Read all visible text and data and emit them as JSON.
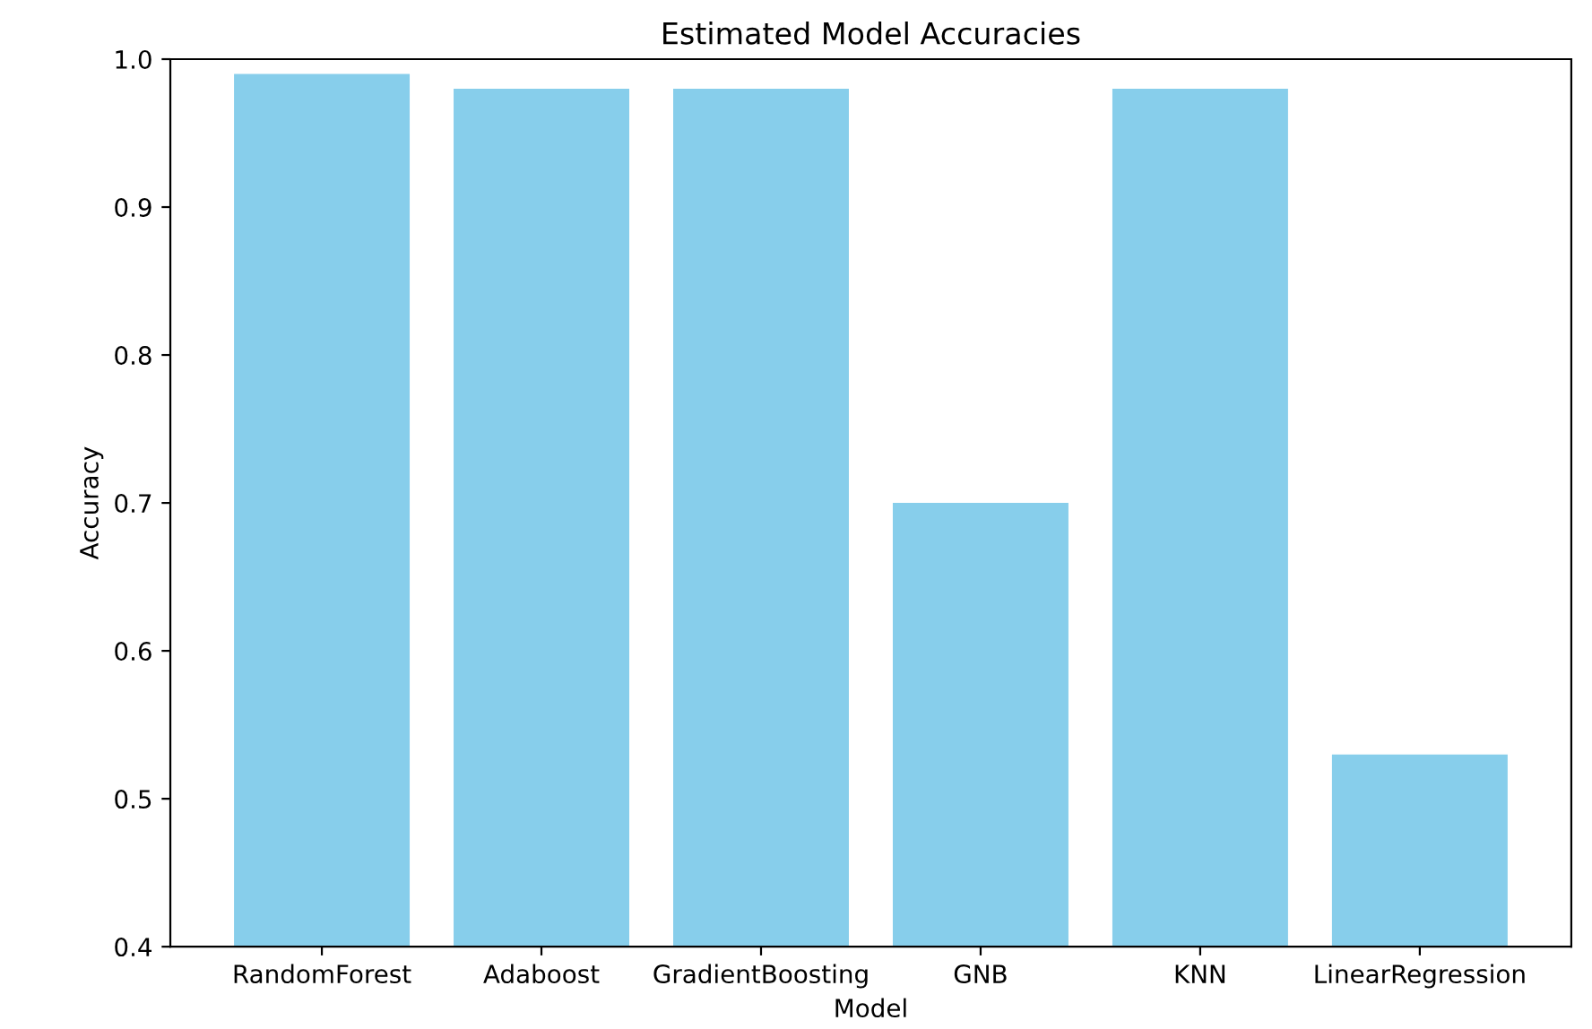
{
  "chart_data": {
    "type": "bar",
    "title": "Estimated Model Accuracies",
    "xlabel": "Model",
    "ylabel": "Accuracy",
    "categories": [
      "RandomForest",
      "Adaboost",
      "GradientBoosting",
      "GNB",
      "KNN",
      "LinearRegression"
    ],
    "values": [
      0.99,
      0.98,
      0.98,
      0.7,
      0.98,
      0.53
    ],
    "color": "#87ceeb",
    "ylim": [
      0.4,
      1.0
    ],
    "yticks": [
      0.4,
      0.5,
      0.6,
      0.7,
      0.8,
      0.9,
      {
        "value": 1.0,
        "label": "1.0"
      }
    ],
    "grid": false,
    "legend": false
  }
}
